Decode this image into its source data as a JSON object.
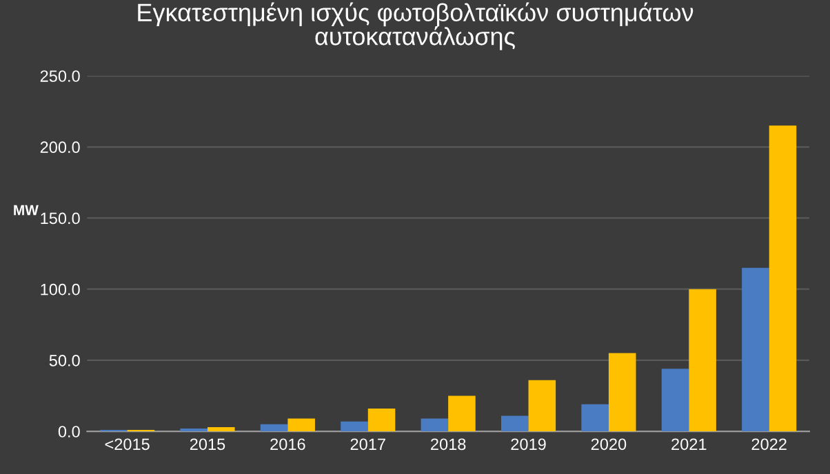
{
  "chart_data": {
    "type": "bar",
    "title": "Εγκατεστημένη ισχύς φωτοβολταϊκών συστημάτων\nαυτοκατανάλωσης",
    "ylabel": "MW",
    "categories": [
      "<2015",
      "2015",
      "2016",
      "2017",
      "2018",
      "2019",
      "2020",
      "2021",
      "2022"
    ],
    "series": [
      {
        "color": "#4a7cc4",
        "values": [
          1,
          2,
          5,
          7,
          9,
          11,
          19,
          44,
          115
        ]
      },
      {
        "color": "#ffc000",
        "values": [
          1,
          3,
          9,
          16,
          25,
          36,
          55,
          100,
          215
        ]
      }
    ],
    "ylim": [
      0,
      250
    ],
    "yticks": [
      {
        "value": 0,
        "label": "0.0"
      },
      {
        "value": 50,
        "label": "50.0"
      },
      {
        "value": 100,
        "label": "100.0"
      },
      {
        "value": 150,
        "label": "150.0"
      },
      {
        "value": 200,
        "label": "200.0"
      },
      {
        "value": 250,
        "label": "250.0"
      }
    ],
    "grid": "y"
  }
}
